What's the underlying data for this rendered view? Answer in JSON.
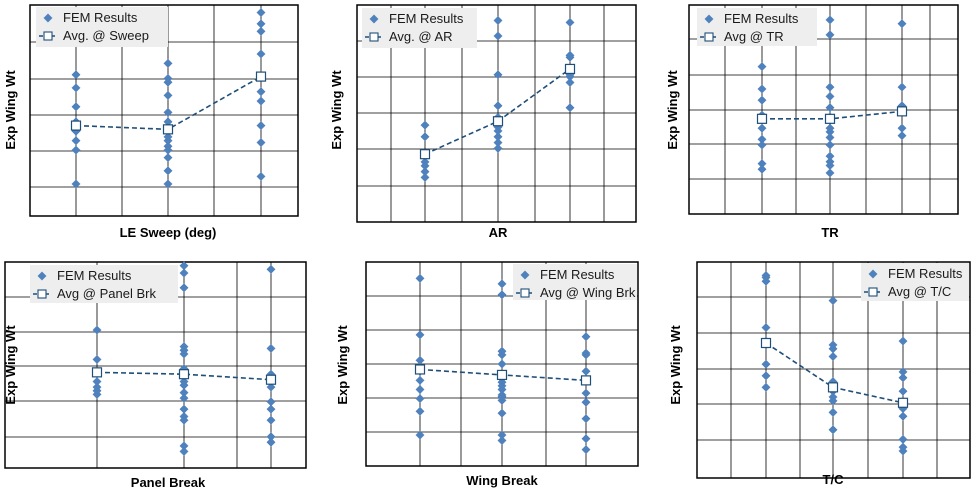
{
  "colors": {
    "marker": "#4F81BD",
    "avg_line": "#1F4E79",
    "grid": "#000000",
    "border": "#000000",
    "legend_bg": "#EEEEEE"
  },
  "chart_data": [
    {
      "type": "scatter",
      "xlabel": "LE Sweep (deg)",
      "ylabel": "Exp Wing Wt",
      "legend": {
        "markers_label": "FEM Results",
        "avg_label": "Avg. @ Sweep"
      },
      "categories": 3,
      "points": [
        [
          1,
          0.95
        ],
        [
          1,
          0.75
        ],
        [
          1,
          0.68
        ],
        [
          1,
          0.58
        ],
        [
          1,
          0.5
        ],
        [
          1,
          0.45
        ],
        [
          1,
          0.4
        ],
        [
          1,
          0.35
        ],
        [
          1,
          0.17
        ],
        [
          2,
          0.81
        ],
        [
          2,
          0.73
        ],
        [
          2,
          0.71
        ],
        [
          2,
          0.64
        ],
        [
          2,
          0.55
        ],
        [
          2,
          0.5
        ],
        [
          2,
          0.46
        ],
        [
          2,
          0.42
        ],
        [
          2,
          0.4
        ],
        [
          2,
          0.37
        ],
        [
          2,
          0.35
        ],
        [
          2,
          0.31
        ],
        [
          2,
          0.24
        ],
        [
          2,
          0.17
        ],
        [
          3,
          1.08
        ],
        [
          3,
          1.02
        ],
        [
          3,
          0.98
        ],
        [
          3,
          0.86
        ],
        [
          3,
          0.66
        ],
        [
          3,
          0.61
        ],
        [
          3,
          0.48
        ],
        [
          3,
          0.39
        ],
        [
          3,
          0.21
        ]
      ],
      "avg": [
        [
          1,
          0.48
        ],
        [
          2,
          0.46
        ],
        [
          3,
          0.74
        ]
      ]
    },
    {
      "type": "scatter",
      "xlabel": "AR",
      "ylabel": "Exp Wing Wt",
      "legend": {
        "markers_label": "FEM Results",
        "avg_label": "Avg. @ AR"
      },
      "categories": 3,
      "points": [
        [
          1,
          0.5
        ],
        [
          1,
          0.44
        ],
        [
          1,
          0.31
        ],
        [
          1,
          0.29
        ],
        [
          1,
          0.26
        ],
        [
          1,
          0.23
        ],
        [
          2,
          1.04
        ],
        [
          2,
          0.96
        ],
        [
          2,
          0.76
        ],
        [
          2,
          0.6
        ],
        [
          2,
          0.54
        ],
        [
          2,
          0.51
        ],
        [
          2,
          0.49
        ],
        [
          2,
          0.47
        ],
        [
          2,
          0.44
        ],
        [
          2,
          0.41
        ],
        [
          2,
          0.38
        ],
        [
          3,
          1.03
        ],
        [
          3,
          0.86
        ],
        [
          3,
          0.85
        ],
        [
          3,
          0.76
        ],
        [
          3,
          0.75
        ],
        [
          3,
          0.72
        ],
        [
          3,
          0.59
        ]
      ],
      "avg": [
        [
          1,
          0.35
        ],
        [
          2,
          0.52
        ],
        [
          3,
          0.79
        ]
      ]
    },
    {
      "type": "scatter",
      "xlabel": "TR",
      "ylabel": "Exp Wing Wt",
      "legend": {
        "markers_label": "FEM Results",
        "avg_label": "Avg @ TR"
      },
      "categories": 3,
      "points": [
        [
          1,
          0.79
        ],
        [
          1,
          0.67
        ],
        [
          1,
          0.61
        ],
        [
          1,
          0.53
        ],
        [
          1,
          0.51
        ],
        [
          1,
          0.46
        ],
        [
          1,
          0.4
        ],
        [
          1,
          0.37
        ],
        [
          1,
          0.27
        ],
        [
          1,
          0.24
        ],
        [
          2,
          1.04
        ],
        [
          2,
          0.96
        ],
        [
          2,
          0.68
        ],
        [
          2,
          0.63
        ],
        [
          2,
          0.57
        ],
        [
          2,
          0.52
        ],
        [
          2,
          0.5
        ],
        [
          2,
          0.46
        ],
        [
          2,
          0.44
        ],
        [
          2,
          0.41
        ],
        [
          2,
          0.37
        ],
        [
          2,
          0.31
        ],
        [
          2,
          0.28
        ],
        [
          2,
          0.26
        ],
        [
          2,
          0.22
        ],
        [
          3,
          1.02
        ],
        [
          3,
          0.68
        ],
        [
          3,
          0.58
        ],
        [
          3,
          0.46
        ],
        [
          3,
          0.42
        ]
      ],
      "avg": [
        [
          1,
          0.51
        ],
        [
          2,
          0.51
        ],
        [
          3,
          0.55
        ]
      ]
    },
    {
      "type": "scatter",
      "xlabel": "Panel Break",
      "ylabel": "Exp Wing Wt",
      "legend": {
        "markers_label": "FEM Results",
        "avg_label": "Avg @ Panel Brk"
      },
      "categories": 3,
      "points": [
        [
          1,
          0.75
        ],
        [
          1,
          0.59
        ],
        [
          1,
          0.52
        ],
        [
          1,
          0.47
        ],
        [
          1,
          0.44
        ],
        [
          1,
          0.42
        ],
        [
          1,
          0.4
        ],
        [
          2,
          1.1
        ],
        [
          2,
          1.06
        ],
        [
          2,
          0.98
        ],
        [
          2,
          0.66
        ],
        [
          2,
          0.64
        ],
        [
          2,
          0.62
        ],
        [
          2,
          0.54
        ],
        [
          2,
          0.5
        ],
        [
          2,
          0.47
        ],
        [
          2,
          0.45
        ],
        [
          2,
          0.41
        ],
        [
          2,
          0.38
        ],
        [
          2,
          0.32
        ],
        [
          2,
          0.28
        ],
        [
          2,
          0.26
        ],
        [
          2,
          0.12
        ],
        [
          2,
          0.09
        ],
        [
          3,
          1.08
        ],
        [
          3,
          0.65
        ],
        [
          3,
          0.51
        ],
        [
          3,
          0.44
        ],
        [
          3,
          0.36
        ],
        [
          3,
          0.32
        ],
        [
          3,
          0.26
        ],
        [
          3,
          0.17
        ],
        [
          3,
          0.14
        ]
      ],
      "avg": [
        [
          1,
          0.52
        ],
        [
          2,
          0.51
        ],
        [
          3,
          0.48
        ]
      ]
    },
    {
      "type": "scatter",
      "xlabel": "Wing Break",
      "ylabel": "Exp Wing Wt",
      "legend": {
        "markers_label": "FEM Results",
        "avg_label": "Avg @ Wing Brk"
      },
      "categories": 3,
      "points": [
        [
          1,
          1.03
        ],
        [
          1,
          0.72
        ],
        [
          1,
          0.58
        ],
        [
          1,
          0.52
        ],
        [
          1,
          0.47
        ],
        [
          1,
          0.42
        ],
        [
          1,
          0.37
        ],
        [
          1,
          0.3
        ],
        [
          1,
          0.17
        ],
        [
          2,
          1.0
        ],
        [
          2,
          0.94
        ],
        [
          2,
          0.63
        ],
        [
          2,
          0.61
        ],
        [
          2,
          0.56
        ],
        [
          2,
          0.48
        ],
        [
          2,
          0.46
        ],
        [
          2,
          0.44
        ],
        [
          2,
          0.42
        ],
        [
          2,
          0.39
        ],
        [
          2,
          0.38
        ],
        [
          2,
          0.36
        ],
        [
          2,
          0.29
        ],
        [
          2,
          0.17
        ],
        [
          2,
          0.14
        ],
        [
          3,
          0.71
        ],
        [
          3,
          0.62
        ],
        [
          3,
          0.61
        ],
        [
          3,
          0.52
        ],
        [
          3,
          0.47
        ],
        [
          3,
          0.4
        ],
        [
          3,
          0.35
        ],
        [
          3,
          0.26
        ],
        [
          3,
          0.15
        ],
        [
          3,
          0.09
        ]
      ],
      "avg": [
        [
          1,
          0.53
        ],
        [
          2,
          0.5
        ],
        [
          3,
          0.47
        ]
      ]
    },
    {
      "type": "scatter",
      "xlabel": "T/C",
      "ylabel": "Exp Wing Wt",
      "legend": {
        "markers_label": "FEM Results",
        "avg_label": "Avg @ T/C"
      },
      "categories": 3,
      "points": [
        [
          1,
          1.05
        ],
        [
          1,
          1.04
        ],
        [
          1,
          1.02
        ],
        [
          1,
          0.78
        ],
        [
          1,
          0.71
        ],
        [
          1,
          0.69
        ],
        [
          1,
          0.59
        ],
        [
          1,
          0.53
        ],
        [
          1,
          0.47
        ],
        [
          2,
          0.92
        ],
        [
          2,
          0.69
        ],
        [
          2,
          0.67
        ],
        [
          2,
          0.63
        ],
        [
          2,
          0.5
        ],
        [
          2,
          0.46
        ],
        [
          2,
          0.45
        ],
        [
          2,
          0.42
        ],
        [
          2,
          0.4
        ],
        [
          2,
          0.34
        ],
        [
          2,
          0.25
        ],
        [
          3,
          0.71
        ],
        [
          3,
          0.55
        ],
        [
          3,
          0.52
        ],
        [
          3,
          0.45
        ],
        [
          3,
          0.39
        ],
        [
          3,
          0.36
        ],
        [
          3,
          0.32
        ],
        [
          3,
          0.2
        ],
        [
          3,
          0.16
        ],
        [
          3,
          0.14
        ]
      ],
      "avg": [
        [
          1,
          0.7
        ],
        [
          2,
          0.47
        ],
        [
          3,
          0.39
        ]
      ]
    }
  ]
}
